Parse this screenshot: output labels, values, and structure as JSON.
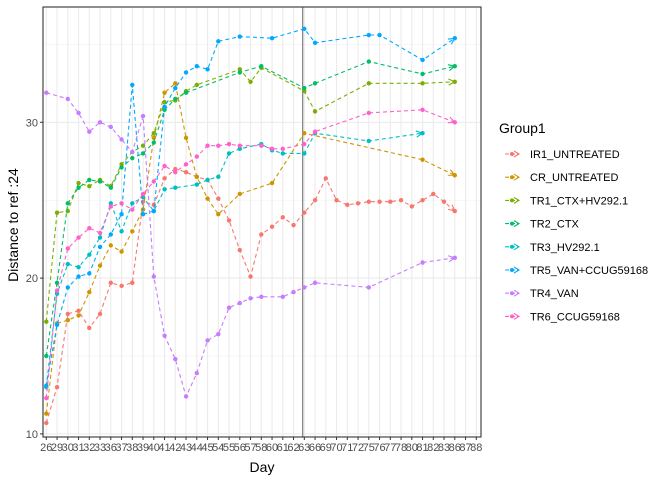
{
  "chart_data": {
    "type": "line",
    "xlabel": "Day",
    "ylabel": "Distance to ref :24",
    "x_tick_labels": [
      "26",
      "29",
      "30",
      "31",
      "32",
      "33",
      "36",
      "37",
      "38",
      "39",
      "40",
      "41",
      "42",
      "43",
      "44",
      "45",
      "54",
      "55",
      "56",
      "57",
      "58",
      "60",
      "61",
      "62",
      "63",
      "66",
      "69",
      "70",
      "71",
      "72",
      "75",
      "76",
      "77",
      "78",
      "80",
      "81",
      "82",
      "83",
      "86",
      "87",
      "88"
    ],
    "ylim": [
      9.8,
      37.4
    ],
    "y_ticks": [
      10,
      20,
      30
    ],
    "vline_at_index": 24,
    "grid": true,
    "legend": {
      "title": "Group1",
      "position": "right"
    },
    "series": [
      {
        "name": "IR1_UNTREATED",
        "color": "#F8766D",
        "points": [
          [
            0,
            10.7
          ],
          [
            1,
            13.0
          ],
          [
            2,
            17.7
          ],
          [
            3,
            17.9
          ],
          [
            4,
            16.8
          ],
          [
            5,
            17.7
          ],
          [
            6,
            19.7
          ],
          [
            7,
            19.5
          ],
          [
            8,
            19.7
          ],
          [
            9,
            24.9
          ],
          [
            10,
            24.7
          ],
          [
            11,
            26.4
          ],
          [
            12,
            27.0
          ],
          [
            13,
            26.8
          ],
          [
            14,
            26.5
          ],
          [
            15,
            26.3
          ],
          [
            16,
            25.1
          ],
          [
            17,
            23.7
          ],
          [
            18,
            21.8
          ],
          [
            19,
            20.1
          ],
          [
            20,
            22.8
          ],
          [
            21,
            23.3
          ],
          [
            22,
            23.9
          ],
          [
            23,
            23.4
          ],
          [
            24,
            24.2
          ],
          [
            25,
            25.0
          ],
          [
            26,
            26.4
          ],
          [
            27,
            25.0
          ],
          [
            28,
            24.7
          ],
          [
            29,
            24.8
          ],
          [
            30,
            24.9
          ],
          [
            31,
            24.9
          ],
          [
            32,
            24.9
          ],
          [
            33,
            25.0
          ],
          [
            34,
            24.6
          ],
          [
            35,
            25.0
          ],
          [
            36,
            25.4
          ],
          [
            37,
            24.9
          ],
          [
            38,
            24.3
          ]
        ]
      },
      {
        "name": "CR_UNTREATED",
        "color": "#CD9600",
        "points": [
          [
            0,
            11.3
          ],
          [
            1,
            17.1
          ],
          [
            2,
            17.3
          ],
          [
            3,
            17.6
          ],
          [
            4,
            19.1
          ],
          [
            5,
            20.8
          ],
          [
            6,
            22.1
          ],
          [
            7,
            21.7
          ],
          [
            8,
            23.0
          ],
          [
            9,
            24.4
          ],
          [
            10,
            29.0
          ],
          [
            11,
            31.9
          ],
          [
            12,
            32.5
          ],
          [
            13,
            29.0
          ],
          [
            14,
            26.5
          ],
          [
            15,
            25.1
          ],
          [
            16,
            24.1
          ],
          [
            18,
            25.4
          ],
          [
            21,
            26.1
          ],
          [
            24,
            29.3
          ],
          [
            35,
            27.6
          ],
          [
            38,
            26.6
          ]
        ]
      },
      {
        "name": "TR1_CTX+HV292.1",
        "color": "#7CAE00",
        "points": [
          [
            0,
            17.2
          ],
          [
            1,
            24.2
          ],
          [
            2,
            24.3
          ],
          [
            3,
            26.1
          ],
          [
            4,
            25.9
          ],
          [
            5,
            26.3
          ],
          [
            6,
            25.9
          ],
          [
            7,
            27.3
          ],
          [
            8,
            28.1
          ],
          [
            9,
            28.5
          ],
          [
            10,
            29.3
          ],
          [
            11,
            31.3
          ],
          [
            12,
            31.4
          ],
          [
            13,
            32.0
          ],
          [
            14,
            32.4
          ],
          [
            18,
            33.4
          ],
          [
            19,
            32.6
          ],
          [
            20,
            33.5
          ],
          [
            24,
            32.0
          ],
          [
            25,
            30.7
          ],
          [
            30,
            32.5
          ],
          [
            35,
            32.5
          ],
          [
            38,
            32.6
          ]
        ]
      },
      {
        "name": "TR2_CTX",
        "color": "#00BE67",
        "points": [
          [
            0,
            15.0
          ],
          [
            1,
            19.7
          ],
          [
            2,
            24.8
          ],
          [
            3,
            25.8
          ],
          [
            4,
            26.3
          ],
          [
            5,
            26.2
          ],
          [
            6,
            25.8
          ],
          [
            7,
            27.1
          ],
          [
            8,
            27.7
          ],
          [
            9,
            28.0
          ],
          [
            10,
            28.7
          ],
          [
            11,
            30.8
          ],
          [
            12,
            31.5
          ],
          [
            13,
            31.9
          ],
          [
            18,
            33.2
          ],
          [
            20,
            33.6
          ],
          [
            24,
            32.2
          ],
          [
            25,
            32.5
          ],
          [
            30,
            33.9
          ],
          [
            35,
            33.1
          ],
          [
            38,
            33.6
          ]
        ]
      },
      {
        "name": "TR3_HV292.1",
        "color": "#00BFC4",
        "points": [
          [
            0,
            13.0
          ],
          [
            1,
            19.0
          ],
          [
            2,
            20.9
          ],
          [
            3,
            20.7
          ],
          [
            4,
            21.5
          ],
          [
            5,
            22.6
          ],
          [
            6,
            24.8
          ],
          [
            7,
            23.0
          ],
          [
            8,
            24.8
          ],
          [
            9,
            25.2
          ],
          [
            10,
            24.3
          ],
          [
            11,
            25.7
          ],
          [
            12,
            25.8
          ],
          [
            14,
            26.0
          ],
          [
            15,
            26.3
          ],
          [
            16,
            26.5
          ],
          [
            17,
            28.0
          ],
          [
            18,
            28.3
          ],
          [
            20,
            28.6
          ],
          [
            21,
            28.2
          ],
          [
            22,
            28.0
          ],
          [
            24,
            28.0
          ],
          [
            25,
            29.3
          ],
          [
            30,
            28.8
          ],
          [
            35,
            29.3
          ]
        ]
      },
      {
        "name": "TR5_VAN+CCUG59168",
        "color": "#00A9FF",
        "points": [
          [
            0,
            13.1
          ],
          [
            1,
            17.0
          ],
          [
            2,
            19.4
          ],
          [
            3,
            20.1
          ],
          [
            4,
            20.3
          ],
          [
            5,
            22.0
          ],
          [
            6,
            22.8
          ],
          [
            7,
            24.1
          ],
          [
            8,
            32.4
          ],
          [
            9,
            24.1
          ],
          [
            10,
            24.3
          ],
          [
            11,
            31.0
          ],
          [
            12,
            32.2
          ],
          [
            13,
            33.2
          ],
          [
            14,
            33.6
          ],
          [
            15,
            33.4
          ],
          [
            16,
            35.2
          ],
          [
            18,
            35.5
          ],
          [
            21,
            35.4
          ],
          [
            24,
            36.0
          ],
          [
            25,
            35.1
          ],
          [
            30,
            35.6
          ],
          [
            31,
            35.6
          ],
          [
            35,
            34.0
          ],
          [
            38,
            35.4
          ]
        ]
      },
      {
        "name": "TR4_VAN",
        "color": "#C77CFF",
        "points": [
          [
            0,
            31.9
          ],
          [
            2,
            31.5
          ],
          [
            3,
            30.6
          ],
          [
            4,
            29.4
          ],
          [
            5,
            30.0
          ],
          [
            6,
            29.7
          ],
          [
            7,
            28.9
          ],
          [
            8,
            28.1
          ],
          [
            9,
            30.4
          ],
          [
            10,
            20.1
          ],
          [
            11,
            16.3
          ],
          [
            12,
            14.8
          ],
          [
            13,
            12.4
          ],
          [
            14,
            13.9
          ],
          [
            15,
            16.0
          ],
          [
            16,
            16.4
          ],
          [
            17,
            18.1
          ],
          [
            18,
            18.4
          ],
          [
            19,
            18.7
          ],
          [
            20,
            18.8
          ],
          [
            22,
            18.8
          ],
          [
            23,
            19.1
          ],
          [
            24,
            19.4
          ],
          [
            25,
            19.7
          ],
          [
            30,
            19.4
          ],
          [
            35,
            21.0
          ],
          [
            38,
            21.3
          ]
        ]
      },
      {
        "name": "TR6_CCUG59168",
        "color": "#FF61CC",
        "points": [
          [
            0,
            12.3
          ],
          [
            1,
            19.2
          ],
          [
            2,
            21.9
          ],
          [
            3,
            22.6
          ],
          [
            4,
            23.2
          ],
          [
            5,
            22.9
          ],
          [
            6,
            24.6
          ],
          [
            7,
            24.8
          ],
          [
            8,
            24.4
          ],
          [
            9,
            25.4
          ],
          [
            10,
            26.2
          ],
          [
            11,
            27.2
          ],
          [
            12,
            26.8
          ],
          [
            13,
            27.3
          ],
          [
            14,
            27.8
          ],
          [
            15,
            28.5
          ],
          [
            16,
            28.5
          ],
          [
            17,
            28.6
          ],
          [
            18,
            28.5
          ],
          [
            20,
            28.5
          ],
          [
            21,
            28.3
          ],
          [
            22,
            28.3
          ],
          [
            24,
            28.6
          ],
          [
            25,
            29.4
          ],
          [
            30,
            30.6
          ],
          [
            35,
            30.8
          ],
          [
            38,
            30.0
          ]
        ]
      }
    ]
  }
}
